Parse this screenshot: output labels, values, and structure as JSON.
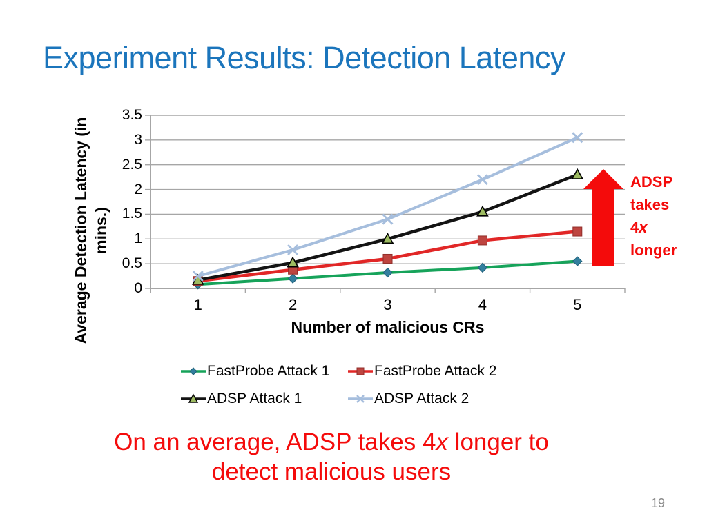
{
  "slide": {
    "title": "Experiment Results: Detection Latency",
    "title_color": "#1B75BC",
    "page_number": "19"
  },
  "chart_data": {
    "type": "line",
    "xlabel": "Number of malicious CRs",
    "ylabel": "Average Detection Latency (in mins.)",
    "ylabel_lines": [
      "Average Detection Latency (in",
      "mins.)"
    ],
    "categories": [
      "1",
      "2",
      "3",
      "4",
      "5"
    ],
    "ylim": [
      0,
      3.5
    ],
    "ytick_step": 0.5,
    "yticks": [
      "0",
      "0.5",
      "1",
      "1.5",
      "2",
      "2.5",
      "3",
      "3.5"
    ],
    "grid": true,
    "grid_color": "#A6A6A6",
    "legend_position": "bottom",
    "series": [
      {
        "name": "FastProbe Attack 1",
        "marker": "diamond",
        "line_color": "#16A35A",
        "marker_color": "#337F9E",
        "marker_stroke": "#1F5F7A",
        "line_width": 4,
        "values": [
          0.08,
          0.2,
          0.32,
          0.42,
          0.55
        ]
      },
      {
        "name": "FastProbe Attack 2",
        "marker": "square",
        "line_color": "#E12727",
        "marker_color": "#BE4540",
        "marker_stroke": "#922F2B",
        "line_width": 4.5,
        "values": [
          0.15,
          0.38,
          0.6,
          0.97,
          1.15
        ]
      },
      {
        "name": "ADSP Attack 1",
        "marker": "triangle",
        "line_color": "#131313",
        "marker_color": "#9DBB61",
        "marker_stroke": "#000000",
        "line_width": 4.5,
        "values": [
          0.17,
          0.52,
          1.0,
          1.55,
          2.3
        ]
      },
      {
        "name": "ADSP Attack 2",
        "marker": "x",
        "line_color": "#A6BEDD",
        "marker_color": "#A6BEDD",
        "marker_stroke": "#A6BEDD",
        "line_width": 4,
        "values": [
          0.25,
          0.78,
          1.4,
          2.2,
          3.05
        ]
      }
    ]
  },
  "annotation": {
    "color": "#F40B0B",
    "line1": "ADSP",
    "line2": "takes",
    "line3_pre": "4",
    "line3_italic": "x",
    "line4": "longer"
  },
  "caption": {
    "color": "#F40B0B",
    "line1_pre": "On an average, ADSP takes 4",
    "line1_italic": "x",
    "line1_post": " longer to",
    "line2": "detect malicious users"
  }
}
